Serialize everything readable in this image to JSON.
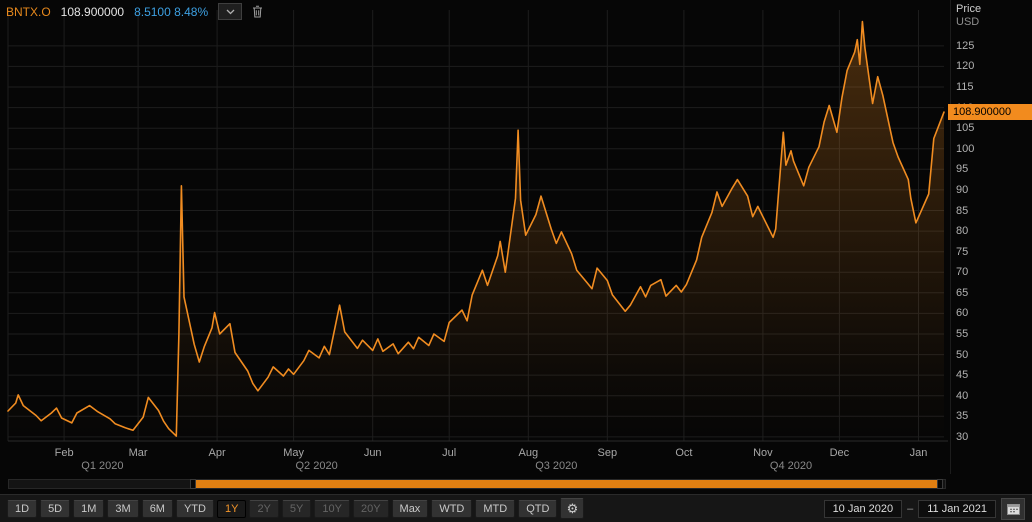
{
  "header": {
    "symbol": "BNTX.O",
    "last_price": "108.900000",
    "change": "8.5100",
    "change_pct": "8.48%"
  },
  "axis": {
    "price_label": "Price",
    "currency_label": "USD",
    "price_tag": "108.900000"
  },
  "icons": {
    "dropdown": "chevron-down-icon",
    "delete": "trash-icon",
    "settings": "gear-icon",
    "calendar": "calendar-icon"
  },
  "colors": {
    "accent_orange": "#f08c21",
    "change_blue": "#3da0e2",
    "background": "#060606",
    "grid": "#1d1d1d",
    "tick_text": "#b2b2b2",
    "price_tag_bg": "#f28b1e"
  },
  "toolbar": {
    "range_buttons": [
      {
        "label": "1D",
        "state": "normal"
      },
      {
        "label": "5D",
        "state": "normal"
      },
      {
        "label": "1M",
        "state": "normal"
      },
      {
        "label": "3M",
        "state": "normal"
      },
      {
        "label": "6M",
        "state": "normal"
      },
      {
        "label": "YTD",
        "state": "normal"
      },
      {
        "label": "1Y",
        "state": "selected"
      },
      {
        "label": "2Y",
        "state": "disabled"
      },
      {
        "label": "5Y",
        "state": "disabled"
      },
      {
        "label": "10Y",
        "state": "disabled"
      },
      {
        "label": "20Y",
        "state": "disabled"
      },
      {
        "label": "Max",
        "state": "normal"
      },
      {
        "label": "WTD",
        "state": "normal"
      },
      {
        "label": "MTD",
        "state": "normal"
      },
      {
        "label": "QTD",
        "state": "normal"
      }
    ],
    "date_from": "10 Jan 2020",
    "date_separator": "–",
    "date_to": "11 Jan 2021"
  },
  "range_slider": {
    "start_pct": 19.6,
    "end_pct": 99.4
  },
  "chart_data": {
    "type": "line",
    "title": "BNTX.O",
    "xlabel": "",
    "ylabel": "Price USD",
    "x_range": [
      "2020-01-10",
      "2021-01-11"
    ],
    "ylim": [
      29,
      134.2
    ],
    "yticks": [
      30,
      35,
      40,
      45,
      50,
      55,
      60,
      65,
      70,
      75,
      80,
      85,
      90,
      95,
      100,
      105,
      110,
      115,
      120,
      125
    ],
    "grid": true,
    "legend_position": "top-left",
    "months": [
      {
        "label": "Feb",
        "date": "2020-02-01"
      },
      {
        "label": "Mar",
        "date": "2020-03-01"
      },
      {
        "label": "Apr",
        "date": "2020-04-01"
      },
      {
        "label": "May",
        "date": "2020-05-01"
      },
      {
        "label": "Jun",
        "date": "2020-06-01"
      },
      {
        "label": "Jul",
        "date": "2020-07-01"
      },
      {
        "label": "Aug",
        "date": "2020-08-01"
      },
      {
        "label": "Sep",
        "date": "2020-09-01"
      },
      {
        "label": "Oct",
        "date": "2020-10-01"
      },
      {
        "label": "Nov",
        "date": "2020-11-01"
      },
      {
        "label": "Dec",
        "date": "2020-12-01"
      },
      {
        "label": "Jan",
        "date": "2021-01-01"
      }
    ],
    "quarters": [
      {
        "label": "Q1 2020",
        "center_date": "2020-02-16"
      },
      {
        "label": "Q2 2020",
        "center_date": "2020-05-10"
      },
      {
        "label": "Q3 2020",
        "center_date": "2020-08-12"
      },
      {
        "label": "Q4 2020",
        "center_date": "2020-11-12"
      }
    ],
    "series": [
      {
        "name": "BNTX.O",
        "color": "#f08c21",
        "points": [
          [
            "2020-01-10",
            36.3
          ],
          [
            "2020-01-13",
            38.2
          ],
          [
            "2020-01-14",
            40.2
          ],
          [
            "2020-01-16",
            37.6
          ],
          [
            "2020-01-21",
            35.2
          ],
          [
            "2020-01-23",
            33.9
          ],
          [
            "2020-01-27",
            35.8
          ],
          [
            "2020-01-29",
            37.0
          ],
          [
            "2020-01-31",
            34.6
          ],
          [
            "2020-02-04",
            33.4
          ],
          [
            "2020-02-06",
            35.8
          ],
          [
            "2020-02-11",
            37.6
          ],
          [
            "2020-02-14",
            36.2
          ],
          [
            "2020-02-19",
            34.4
          ],
          [
            "2020-02-21",
            33.2
          ],
          [
            "2020-02-25",
            32.2
          ],
          [
            "2020-02-28",
            31.6
          ],
          [
            "2020-03-03",
            34.8
          ],
          [
            "2020-03-05",
            39.6
          ],
          [
            "2020-03-09",
            36.4
          ],
          [
            "2020-03-11",
            33.8
          ],
          [
            "2020-03-13",
            32.0
          ],
          [
            "2020-03-16",
            30.2
          ],
          [
            "2020-03-17",
            55.0
          ],
          [
            "2020-03-18",
            91.0
          ],
          [
            "2020-03-19",
            64.0
          ],
          [
            "2020-03-23",
            52.5
          ],
          [
            "2020-03-25",
            48.2
          ],
          [
            "2020-03-27",
            52.0
          ],
          [
            "2020-03-30",
            56.5
          ],
          [
            "2020-03-31",
            60.2
          ],
          [
            "2020-04-02",
            55.0
          ],
          [
            "2020-04-06",
            57.5
          ],
          [
            "2020-04-08",
            50.5
          ],
          [
            "2020-04-13",
            46.0
          ],
          [
            "2020-04-15",
            43.0
          ],
          [
            "2020-04-17",
            41.2
          ],
          [
            "2020-04-21",
            44.5
          ],
          [
            "2020-04-23",
            47.0
          ],
          [
            "2020-04-27",
            44.8
          ],
          [
            "2020-04-29",
            46.5
          ],
          [
            "2020-05-01",
            45.2
          ],
          [
            "2020-05-05",
            48.5
          ],
          [
            "2020-05-07",
            51.0
          ],
          [
            "2020-05-11",
            49.2
          ],
          [
            "2020-05-13",
            52.0
          ],
          [
            "2020-05-15",
            50.0
          ],
          [
            "2020-05-19",
            62.0
          ],
          [
            "2020-05-21",
            55.5
          ],
          [
            "2020-05-26",
            51.5
          ],
          [
            "2020-05-28",
            53.5
          ],
          [
            "2020-06-01",
            51.0
          ],
          [
            "2020-06-03",
            53.8
          ],
          [
            "2020-06-05",
            50.8
          ],
          [
            "2020-06-09",
            52.6
          ],
          [
            "2020-06-11",
            50.2
          ],
          [
            "2020-06-15",
            53.0
          ],
          [
            "2020-06-17",
            51.4
          ],
          [
            "2020-06-19",
            54.2
          ],
          [
            "2020-06-23",
            52.2
          ],
          [
            "2020-06-25",
            55.0
          ],
          [
            "2020-06-29",
            53.2
          ],
          [
            "2020-07-01",
            57.8
          ],
          [
            "2020-07-06",
            60.8
          ],
          [
            "2020-07-08",
            58.2
          ],
          [
            "2020-07-10",
            64.5
          ],
          [
            "2020-07-14",
            70.5
          ],
          [
            "2020-07-16",
            66.8
          ],
          [
            "2020-07-20",
            74.0
          ],
          [
            "2020-07-21",
            77.5
          ],
          [
            "2020-07-23",
            70.0
          ],
          [
            "2020-07-27",
            88.0
          ],
          [
            "2020-07-28",
            104.5
          ],
          [
            "2020-07-29",
            87.5
          ],
          [
            "2020-07-31",
            79.0
          ],
          [
            "2020-08-04",
            84.0
          ],
          [
            "2020-08-06",
            88.5
          ],
          [
            "2020-08-10",
            80.5
          ],
          [
            "2020-08-12",
            77.0
          ],
          [
            "2020-08-14",
            79.8
          ],
          [
            "2020-08-18",
            74.5
          ],
          [
            "2020-08-20",
            70.5
          ],
          [
            "2020-08-24",
            67.5
          ],
          [
            "2020-08-26",
            66.0
          ],
          [
            "2020-08-28",
            71.0
          ],
          [
            "2020-09-01",
            68.0
          ],
          [
            "2020-09-03",
            64.5
          ],
          [
            "2020-09-08",
            60.5
          ],
          [
            "2020-09-10",
            62.0
          ],
          [
            "2020-09-14",
            66.5
          ],
          [
            "2020-09-16",
            64.0
          ],
          [
            "2020-09-18",
            66.8
          ],
          [
            "2020-09-22",
            68.2
          ],
          [
            "2020-09-24",
            64.2
          ],
          [
            "2020-09-28",
            66.8
          ],
          [
            "2020-09-30",
            65.2
          ],
          [
            "2020-10-02",
            67.0
          ],
          [
            "2020-10-06",
            73.0
          ],
          [
            "2020-10-08",
            78.5
          ],
          [
            "2020-10-12",
            84.5
          ],
          [
            "2020-10-14",
            89.5
          ],
          [
            "2020-10-16",
            86.0
          ],
          [
            "2020-10-20",
            90.5
          ],
          [
            "2020-10-22",
            92.5
          ],
          [
            "2020-10-26",
            88.5
          ],
          [
            "2020-10-28",
            83.5
          ],
          [
            "2020-10-30",
            86.0
          ],
          [
            "2020-11-03",
            81.0
          ],
          [
            "2020-11-05",
            78.5
          ],
          [
            "2020-11-06",
            80.5
          ],
          [
            "2020-11-09",
            104.0
          ],
          [
            "2020-11-10",
            96.0
          ],
          [
            "2020-11-12",
            99.5
          ],
          [
            "2020-11-13",
            97.0
          ],
          [
            "2020-11-17",
            91.0
          ],
          [
            "2020-11-19",
            95.5
          ],
          [
            "2020-11-23",
            100.5
          ],
          [
            "2020-11-25",
            106.5
          ],
          [
            "2020-11-27",
            110.5
          ],
          [
            "2020-11-30",
            104.0
          ],
          [
            "2020-12-02",
            112.5
          ],
          [
            "2020-12-04",
            119.0
          ],
          [
            "2020-12-07",
            123.5
          ],
          [
            "2020-12-08",
            126.5
          ],
          [
            "2020-12-09",
            120.5
          ],
          [
            "2020-12-10",
            130.9
          ],
          [
            "2020-12-11",
            124.5
          ],
          [
            "2020-12-14",
            111.0
          ],
          [
            "2020-12-16",
            117.5
          ],
          [
            "2020-12-18",
            113.0
          ],
          [
            "2020-12-22",
            101.5
          ],
          [
            "2020-12-24",
            98.0
          ],
          [
            "2020-12-28",
            92.5
          ],
          [
            "2020-12-29",
            88.0
          ],
          [
            "2020-12-31",
            82.0
          ],
          [
            "2021-01-05",
            89.0
          ],
          [
            "2021-01-07",
            102.5
          ],
          [
            "2021-01-11",
            108.9
          ]
        ]
      }
    ]
  }
}
